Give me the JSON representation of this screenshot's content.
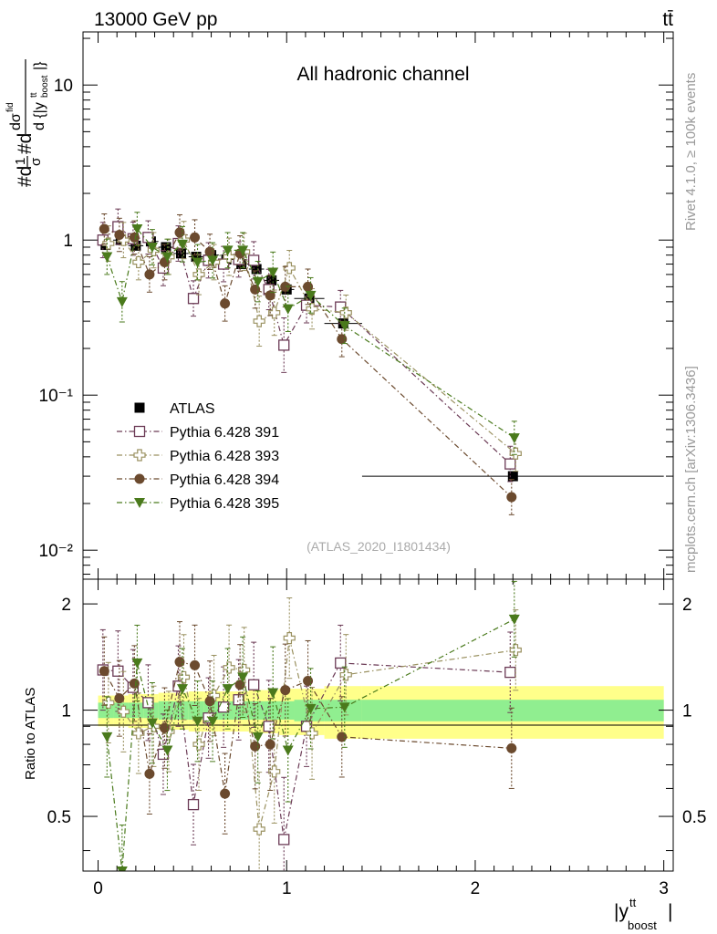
{
  "header": {
    "left_title": "13000 GeV pp",
    "right_title": "tt̄",
    "side_rivet": "Rivet 4.1.0, ≥ 100k events",
    "side_mcplots": "mcplots.cern.ch [arXiv:1306.3436]"
  },
  "chart_data": {
    "type": "scatter",
    "title": "All hadronic channel",
    "analysis_tag": "(ATLAS_2020_I1801434)",
    "ylabel_main": "#d¹/σ#d dσ^fid / d{|y^tt_boost|}",
    "ylabel_ratio": "Ratio to ATLAS",
    "xlabel": "|y^tt_boost|",
    "xlim": [
      -0.08,
      3.05
    ],
    "ylim_main": [
      0.0065,
      22
    ],
    "ylim_ratio": [
      0.35,
      2.35
    ],
    "x_ticks": [
      "0",
      "1",
      "2",
      "3"
    ],
    "y_ticks_main": [
      "10⁻²",
      "10⁻¹",
      "1",
      "10"
    ],
    "y_ticks_ratio": [
      "0.5",
      "1",
      "2"
    ],
    "bin_edges": [
      0,
      0.08,
      0.16,
      0.24,
      0.32,
      0.4,
      0.48,
      0.56,
      0.64,
      0.72,
      0.8,
      0.88,
      0.96,
      1.04,
      1.2,
      1.4,
      3.0
    ],
    "x": [
      0.04,
      0.12,
      0.2,
      0.28,
      0.36,
      0.44,
      0.52,
      0.6,
      0.68,
      0.76,
      0.84,
      0.92,
      1.0,
      1.12,
      1.3,
      2.2
    ],
    "data": {
      "name": "ATLAS",
      "values": [
        0.93,
        1.0,
        0.92,
        0.98,
        0.9,
        0.82,
        0.78,
        0.8,
        0.75,
        0.7,
        0.65,
        0.55,
        0.48,
        0.42,
        0.29,
        0.03
      ],
      "band_inner": [
        0.05,
        0.05,
        0.05,
        0.05,
        0.06,
        0.06,
        0.06,
        0.06,
        0.06,
        0.06,
        0.06,
        0.06,
        0.06,
        0.07,
        0.07,
        0.07
      ],
      "band_outer": [
        0.1,
        0.1,
        0.11,
        0.11,
        0.12,
        0.12,
        0.13,
        0.13,
        0.13,
        0.13,
        0.14,
        0.14,
        0.15,
        0.15,
        0.17,
        0.17
      ]
    },
    "series": [
      {
        "name": "Pythia 6.428 391",
        "color": "#6b3a55",
        "marker": "open-square",
        "values": [
          1.0,
          1.22,
          1.02,
          1.04,
          0.66,
          0.95,
          0.42,
          0.74,
          0.7,
          0.75,
          0.74,
          0.48,
          0.21,
          0.38,
          0.37,
          0.036
        ],
        "ratio": [
          1.3,
          1.29,
          1.16,
          1.05,
          0.75,
          1.17,
          0.54,
          0.95,
          1.02,
          1.07,
          1.18,
          0.9,
          0.43,
          0.9,
          1.36,
          1.28
        ],
        "err": [
          0.3,
          0.3,
          0.28,
          0.28,
          0.3,
          0.3,
          0.3,
          0.3,
          0.3,
          0.3,
          0.32,
          0.35,
          0.5,
          0.3,
          0.28,
          0.3
        ]
      },
      {
        "name": "Pythia 6.428 393",
        "color": "#9a9160",
        "marker": "open-cross",
        "values": [
          0.95,
          1.0,
          0.72,
          0.86,
          0.78,
          1.0,
          0.6,
          0.72,
          0.78,
          0.84,
          0.3,
          0.34,
          0.66,
          0.36,
          0.34,
          0.042
        ],
        "ratio": [
          1.05,
          0.99,
          0.86,
          0.9,
          0.87,
          1.24,
          0.8,
          1.1,
          1.32,
          1.3,
          0.46,
          0.67,
          1.6,
          0.86,
          1.26,
          1.48
        ],
        "err": [
          0.3,
          0.3,
          0.3,
          0.3,
          0.3,
          0.32,
          0.35,
          0.3,
          0.32,
          0.32,
          0.45,
          0.4,
          0.3,
          0.35,
          0.3,
          0.3
        ]
      },
      {
        "name": "Pythia 6.428 394",
        "color": "#6b4a2e",
        "marker": "circle",
        "values": [
          1.18,
          1.08,
          1.04,
          0.6,
          0.72,
          1.12,
          1.04,
          0.84,
          0.39,
          0.82,
          0.48,
          0.44,
          0.5,
          0.5,
          0.23,
          0.022
        ],
        "ratio": [
          1.29,
          1.08,
          1.19,
          0.66,
          0.89,
          1.37,
          1.34,
          1.06,
          0.58,
          1.18,
          0.79,
          0.8,
          1.14,
          1.21,
          0.84,
          0.78
        ],
        "err": [
          0.25,
          0.28,
          0.28,
          0.3,
          0.3,
          0.3,
          0.3,
          0.3,
          0.3,
          0.3,
          0.32,
          0.35,
          0.35,
          0.3,
          0.3,
          0.3
        ]
      },
      {
        "name": "Pythia 6.428 395",
        "color": "#4a7a1c",
        "marker": "filled-triangle-down",
        "values": [
          0.78,
          0.4,
          1.18,
          0.9,
          0.78,
          0.94,
          0.72,
          0.74,
          0.86,
          0.86,
          0.54,
          0.62,
          0.36,
          0.44,
          0.28,
          0.053
        ],
        "ratio": [
          0.84,
          0.35,
          1.36,
          0.92,
          0.77,
          1.15,
          0.93,
          0.93,
          1.15,
          1.24,
          0.84,
          1.12,
          0.77,
          1.01,
          1.02,
          1.81
        ],
        "err": [
          0.3,
          0.35,
          0.28,
          0.3,
          0.3,
          0.3,
          0.3,
          0.3,
          0.3,
          0.3,
          0.35,
          0.35,
          0.4,
          0.3,
          0.3,
          0.28
        ]
      }
    ]
  }
}
